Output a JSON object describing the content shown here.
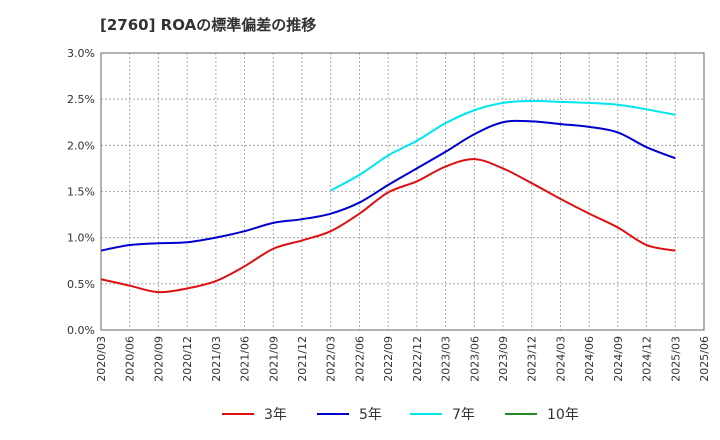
{
  "chart_data": {
    "type": "line",
    "title": "[2760]  ROAの標準偏差の推移",
    "xlabel": "",
    "ylabel": "",
    "x": [
      "2020/03",
      "2020/06",
      "2020/09",
      "2020/12",
      "2021/03",
      "2021/06",
      "2021/09",
      "2021/12",
      "2022/03",
      "2022/06",
      "2022/09",
      "2022/12",
      "2023/03",
      "2023/06",
      "2023/09",
      "2023/12",
      "2024/03",
      "2024/06",
      "2024/09",
      "2024/12",
      "2025/03",
      "2025/06"
    ],
    "y_ticks": [
      "0.0%",
      "0.5%",
      "1.0%",
      "1.5%",
      "2.0%",
      "2.5%",
      "3.0%"
    ],
    "ylim": [
      0,
      3.0
    ],
    "grid": true,
    "legend_position": "bottom",
    "series": [
      {
        "name": "3年",
        "color": "#dd1111",
        "values": [
          0.55,
          0.48,
          0.41,
          0.45,
          0.53,
          0.69,
          0.88,
          0.97,
          1.07,
          1.26,
          1.49,
          1.61,
          1.77,
          1.85,
          1.75,
          1.59,
          1.42,
          1.26,
          1.11,
          0.92,
          0.86,
          null
        ]
      },
      {
        "name": "5年",
        "color": "#0000cc",
        "values": [
          0.86,
          0.92,
          0.94,
          0.95,
          1.0,
          1.07,
          1.16,
          1.2,
          1.26,
          1.38,
          1.57,
          1.75,
          1.93,
          2.12,
          2.25,
          2.26,
          2.23,
          2.2,
          2.14,
          1.98,
          1.86,
          null
        ]
      },
      {
        "name": "7年",
        "color": "#00e5ee",
        "values": [
          null,
          null,
          null,
          null,
          null,
          null,
          null,
          null,
          1.51,
          1.68,
          1.89,
          2.05,
          2.24,
          2.38,
          2.46,
          2.48,
          2.47,
          2.46,
          2.44,
          2.39,
          2.33,
          null
        ]
      },
      {
        "name": "10年",
        "color": "#228b22",
        "values": [
          null,
          null,
          null,
          null,
          null,
          null,
          null,
          null,
          null,
          null,
          null,
          null,
          null,
          null,
          null,
          null,
          null,
          null,
          null,
          null,
          null,
          null
        ]
      }
    ]
  }
}
